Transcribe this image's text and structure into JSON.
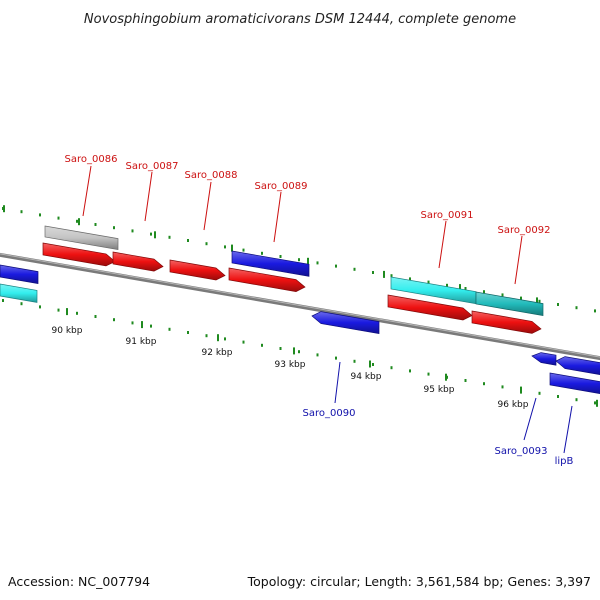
{
  "title": "Novosphingobium aromaticivorans DSM 12444, complete genome",
  "footer": {
    "accession": "Accession: NC_007794",
    "summary": "Topology: circular; Length: 3,561,584 bp; Genes: 3,397"
  },
  "colors": {
    "red": "#ee1111",
    "blue": "#1a1ae0",
    "cyan": "#33eeee",
    "teal": "#22bbbb",
    "gray": "#c4c4c4",
    "backbone": "#7a7a7a",
    "tick": "#1f8a1f",
    "label_red": "#cc1111",
    "label_blue": "#1111aa"
  },
  "scale_labels": [
    "90 kbp",
    "91 kbp",
    "92 kbp",
    "93 kbp",
    "94 kbp",
    "95 kbp",
    "96 kbp"
  ],
  "gene_labels": [
    {
      "id": "Saro_0086",
      "text": "Saro_0086",
      "color": "label_red"
    },
    {
      "id": "Saro_0087",
      "text": "Saro_0087",
      "color": "label_red"
    },
    {
      "id": "Saro_0088",
      "text": "Saro_0088",
      "color": "label_red"
    },
    {
      "id": "Saro_0089",
      "text": "Saro_0089",
      "color": "label_red"
    },
    {
      "id": "Saro_0091",
      "text": "Saro_0091",
      "color": "label_red"
    },
    {
      "id": "Saro_0092",
      "text": "Saro_0092",
      "color": "label_red"
    },
    {
      "id": "Saro_0090",
      "text": "Saro_0090",
      "color": "label_blue"
    },
    {
      "id": "Saro_0093",
      "text": "Saro_0093",
      "color": "label_blue"
    },
    {
      "id": "lipB",
      "text": "lipB",
      "color": "label_blue"
    }
  ]
}
